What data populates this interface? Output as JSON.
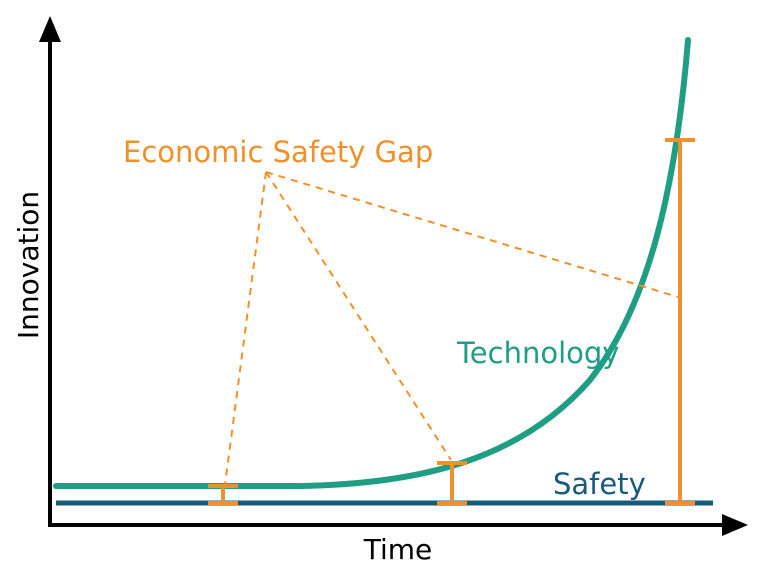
{
  "chart_data": {
    "type": "line",
    "xlabel": "Time",
    "ylabel": "Innovation",
    "annotation": "Economic Safety Gap",
    "grid": false,
    "series": [
      {
        "name": "Technology",
        "color": "#1f9e84"
      },
      {
        "name": "Safety",
        "color": "#175a7a"
      }
    ],
    "gap_color": "#f0902a",
    "axis_color": "#000000",
    "gaps": [
      {
        "position": "early",
        "size": "small"
      },
      {
        "position": "middle",
        "size": "medium"
      },
      {
        "position": "late",
        "size": "large"
      }
    ]
  }
}
